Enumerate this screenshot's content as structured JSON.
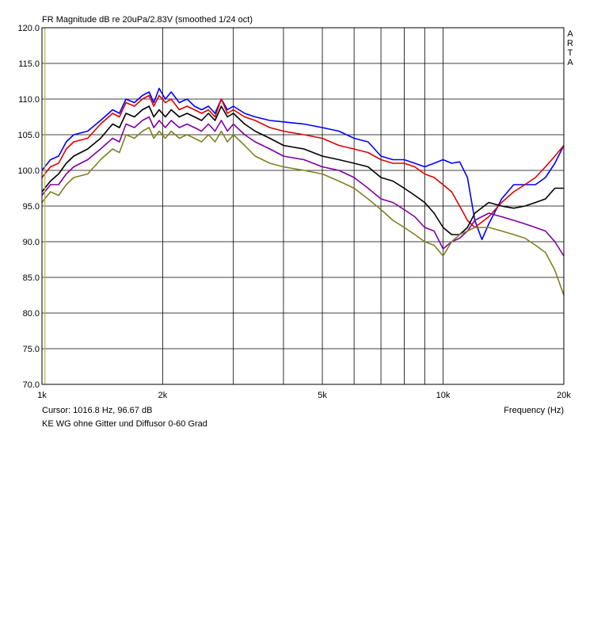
{
  "chart_data": {
    "type": "line",
    "title": "FR Magnitude dB re 20uPa/2.83V (smoothed 1/24 oct)",
    "brand": "ARTA",
    "xlabel": "Frequency (Hz)",
    "ylabel": "",
    "xscale": "log",
    "xlim": [
      1000,
      20000
    ],
    "ylim": [
      70,
      120
    ],
    "grid": true,
    "y_ticks": [
      120,
      115,
      110,
      105,
      100,
      95,
      90,
      85,
      80,
      75,
      70
    ],
    "y_tick_labels": [
      "120.0",
      "115.0",
      "110.0",
      "105.0",
      "100.0",
      "95.0",
      "90.0",
      "85.0",
      "80.0",
      "75.0",
      "70.0"
    ],
    "x_ticks": [
      1000,
      2000,
      5000,
      10000,
      20000
    ],
    "x_tick_labels": [
      "1k",
      "2k",
      "5k",
      "10k",
      "20k"
    ],
    "x_minor_grid": [
      3000,
      4000,
      6000,
      7000,
      8000,
      9000
    ],
    "cursor": {
      "text": "Cursor: 1016.8 Hz, 96.67 dB",
      "x": 1016.8,
      "y": 96.67,
      "color": "#b5b84a"
    },
    "note": "KE WG ohne Gitter und Diffusor 0-60 Grad",
    "series": [
      {
        "color": "#0000ff",
        "points": [
          [
            1000,
            100
          ],
          [
            1050,
            101.5
          ],
          [
            1100,
            102
          ],
          [
            1150,
            104
          ],
          [
            1200,
            105
          ],
          [
            1300,
            105.5
          ],
          [
            1400,
            107
          ],
          [
            1500,
            108.5
          ],
          [
            1560,
            108
          ],
          [
            1620,
            110
          ],
          [
            1700,
            109.5
          ],
          [
            1780,
            110.5
          ],
          [
            1850,
            111
          ],
          [
            1900,
            109.5
          ],
          [
            1960,
            111.5
          ],
          [
            2030,
            110
          ],
          [
            2100,
            111
          ],
          [
            2200,
            109.5
          ],
          [
            2300,
            110
          ],
          [
            2400,
            109
          ],
          [
            2500,
            108.5
          ],
          [
            2600,
            109
          ],
          [
            2700,
            108
          ],
          [
            2800,
            110
          ],
          [
            2900,
            108.5
          ],
          [
            3000,
            109
          ],
          [
            3200,
            108
          ],
          [
            3400,
            107.5
          ],
          [
            3700,
            107
          ],
          [
            4000,
            106.8
          ],
          [
            4500,
            106.5
          ],
          [
            5000,
            106
          ],
          [
            5500,
            105.5
          ],
          [
            6000,
            104.5
          ],
          [
            6500,
            104
          ],
          [
            7000,
            102
          ],
          [
            7500,
            101.5
          ],
          [
            8000,
            101.5
          ],
          [
            8500,
            101
          ],
          [
            9000,
            100.5
          ],
          [
            9500,
            101
          ],
          [
            10000,
            101.5
          ],
          [
            10500,
            101
          ],
          [
            11000,
            101.2
          ],
          [
            11500,
            99
          ],
          [
            12000,
            93
          ],
          [
            12500,
            90.3
          ],
          [
            13000,
            92.5
          ],
          [
            14000,
            96
          ],
          [
            15000,
            98
          ],
          [
            16000,
            98
          ],
          [
            17000,
            98
          ],
          [
            18000,
            99
          ],
          [
            19000,
            101
          ],
          [
            20000,
            103.5
          ]
        ]
      },
      {
        "color": "#e00000",
        "points": [
          [
            1000,
            99
          ],
          [
            1050,
            100.5
          ],
          [
            1100,
            101
          ],
          [
            1150,
            103
          ],
          [
            1200,
            104
          ],
          [
            1300,
            104.5
          ],
          [
            1400,
            106.5
          ],
          [
            1500,
            108
          ],
          [
            1560,
            107.5
          ],
          [
            1620,
            109.5
          ],
          [
            1700,
            109
          ],
          [
            1780,
            110
          ],
          [
            1850,
            110.5
          ],
          [
            1900,
            109
          ],
          [
            1960,
            110.5
          ],
          [
            2030,
            109.5
          ],
          [
            2100,
            110
          ],
          [
            2200,
            108.5
          ],
          [
            2300,
            109
          ],
          [
            2400,
            108.5
          ],
          [
            2500,
            108
          ],
          [
            2600,
            108.5
          ],
          [
            2700,
            107.5
          ],
          [
            2800,
            110
          ],
          [
            2900,
            108
          ],
          [
            3000,
            108.5
          ],
          [
            3200,
            107.5
          ],
          [
            3400,
            107
          ],
          [
            3700,
            106
          ],
          [
            4000,
            105.5
          ],
          [
            4500,
            105
          ],
          [
            5000,
            104.5
          ],
          [
            5500,
            103.5
          ],
          [
            6000,
            103
          ],
          [
            6500,
            102.5
          ],
          [
            7000,
            101.5
          ],
          [
            7500,
            101
          ],
          [
            8000,
            101
          ],
          [
            8500,
            100.5
          ],
          [
            9000,
            99.5
          ],
          [
            9500,
            99
          ],
          [
            10000,
            98
          ],
          [
            10500,
            97
          ],
          [
            11000,
            95
          ],
          [
            11500,
            93
          ],
          [
            12000,
            92
          ],
          [
            13000,
            93.5
          ],
          [
            14000,
            95.5
          ],
          [
            15000,
            97
          ],
          [
            16000,
            98
          ],
          [
            17000,
            99
          ],
          [
            18000,
            100.5
          ],
          [
            19000,
            102
          ],
          [
            20000,
            103.5
          ]
        ]
      },
      {
        "color": "#000000",
        "points": [
          [
            1000,
            97
          ],
          [
            1050,
            98.5
          ],
          [
            1100,
            99.5
          ],
          [
            1150,
            101
          ],
          [
            1200,
            102
          ],
          [
            1300,
            103
          ],
          [
            1400,
            104.5
          ],
          [
            1500,
            106.5
          ],
          [
            1560,
            106
          ],
          [
            1620,
            108
          ],
          [
            1700,
            107.5
          ],
          [
            1780,
            108.5
          ],
          [
            1850,
            109
          ],
          [
            1900,
            107.5
          ],
          [
            1960,
            108.5
          ],
          [
            2030,
            107.5
          ],
          [
            2100,
            108.5
          ],
          [
            2200,
            107.5
          ],
          [
            2300,
            108
          ],
          [
            2400,
            107.5
          ],
          [
            2500,
            107
          ],
          [
            2600,
            108
          ],
          [
            2700,
            107
          ],
          [
            2800,
            109
          ],
          [
            2900,
            107.5
          ],
          [
            3000,
            108
          ],
          [
            3200,
            106.5
          ],
          [
            3400,
            105.5
          ],
          [
            3700,
            104.5
          ],
          [
            4000,
            103.5
          ],
          [
            4500,
            103
          ],
          [
            5000,
            102
          ],
          [
            5500,
            101.5
          ],
          [
            6000,
            101
          ],
          [
            6500,
            100.5
          ],
          [
            7000,
            99
          ],
          [
            7500,
            98.5
          ],
          [
            8000,
            97.5
          ],
          [
            8500,
            96.5
          ],
          [
            9000,
            95.5
          ],
          [
            9500,
            94
          ],
          [
            10000,
            92
          ],
          [
            10500,
            91
          ],
          [
            11000,
            91
          ],
          [
            11500,
            92
          ],
          [
            12000,
            94
          ],
          [
            13000,
            95.5
          ],
          [
            14000,
            95
          ],
          [
            15000,
            94.7
          ],
          [
            16000,
            95
          ],
          [
            17000,
            95.5
          ],
          [
            18000,
            96
          ],
          [
            19000,
            97.5
          ],
          [
            20000,
            97.5
          ]
        ]
      },
      {
        "color": "#8000a0",
        "points": [
          [
            1000,
            96.5
          ],
          [
            1050,
            98
          ],
          [
            1100,
            98
          ],
          [
            1150,
            99.5
          ],
          [
            1200,
            100.5
          ],
          [
            1300,
            101.5
          ],
          [
            1400,
            103
          ],
          [
            1500,
            104.5
          ],
          [
            1560,
            104
          ],
          [
            1620,
            106.5
          ],
          [
            1700,
            106
          ],
          [
            1780,
            107
          ],
          [
            1850,
            107.5
          ],
          [
            1900,
            106
          ],
          [
            1960,
            107
          ],
          [
            2030,
            106
          ],
          [
            2100,
            107
          ],
          [
            2200,
            106
          ],
          [
            2300,
            106.5
          ],
          [
            2400,
            106
          ],
          [
            2500,
            105.5
          ],
          [
            2600,
            106.5
          ],
          [
            2700,
            105.5
          ],
          [
            2800,
            107
          ],
          [
            2900,
            105.5
          ],
          [
            3000,
            106.5
          ],
          [
            3200,
            105
          ],
          [
            3400,
            104
          ],
          [
            3700,
            103
          ],
          [
            4000,
            102
          ],
          [
            4500,
            101.5
          ],
          [
            5000,
            100.5
          ],
          [
            5500,
            100
          ],
          [
            6000,
            99
          ],
          [
            6500,
            97.5
          ],
          [
            7000,
            96
          ],
          [
            7500,
            95.5
          ],
          [
            8000,
            94.5
          ],
          [
            8500,
            93.5
          ],
          [
            9000,
            92
          ],
          [
            9500,
            91.5
          ],
          [
            10000,
            89
          ],
          [
            10500,
            90
          ],
          [
            11000,
            90.5
          ],
          [
            11500,
            91.5
          ],
          [
            12000,
            93
          ],
          [
            13000,
            94
          ],
          [
            14000,
            93.5
          ],
          [
            15000,
            93
          ],
          [
            16000,
            92.5
          ],
          [
            17000,
            92
          ],
          [
            18000,
            91.5
          ],
          [
            19000,
            90
          ],
          [
            20000,
            88
          ]
        ]
      },
      {
        "color": "#808020",
        "points": [
          [
            1000,
            95.5
          ],
          [
            1050,
            97
          ],
          [
            1100,
            96.5
          ],
          [
            1150,
            98
          ],
          [
            1200,
            99
          ],
          [
            1300,
            99.5
          ],
          [
            1400,
            101.5
          ],
          [
            1500,
            103
          ],
          [
            1560,
            102.5
          ],
          [
            1620,
            105
          ],
          [
            1700,
            104.5
          ],
          [
            1780,
            105.5
          ],
          [
            1850,
            106
          ],
          [
            1900,
            104.5
          ],
          [
            1960,
            105.5
          ],
          [
            2030,
            104.5
          ],
          [
            2100,
            105.5
          ],
          [
            2200,
            104.5
          ],
          [
            2300,
            105
          ],
          [
            2400,
            104.5
          ],
          [
            2500,
            104
          ],
          [
            2600,
            105
          ],
          [
            2700,
            104
          ],
          [
            2800,
            105.5
          ],
          [
            2900,
            104
          ],
          [
            3000,
            105
          ],
          [
            3200,
            103.5
          ],
          [
            3400,
            102
          ],
          [
            3700,
            101
          ],
          [
            4000,
            100.5
          ],
          [
            4500,
            100
          ],
          [
            5000,
            99.5
          ],
          [
            5500,
            98.5
          ],
          [
            6000,
            97.5
          ],
          [
            6500,
            96
          ],
          [
            7000,
            94.5
          ],
          [
            7500,
            93
          ],
          [
            8000,
            92
          ],
          [
            8500,
            91
          ],
          [
            9000,
            90
          ],
          [
            9500,
            89.5
          ],
          [
            10000,
            88
          ],
          [
            10500,
            90
          ],
          [
            11000,
            91
          ],
          [
            11500,
            91.5
          ],
          [
            12000,
            92
          ],
          [
            13000,
            92
          ],
          [
            14000,
            91.5
          ],
          [
            15000,
            91
          ],
          [
            16000,
            90.5
          ],
          [
            17000,
            89.5
          ],
          [
            18000,
            88.5
          ],
          [
            19000,
            86
          ],
          [
            20000,
            82.5
          ]
        ]
      }
    ]
  }
}
